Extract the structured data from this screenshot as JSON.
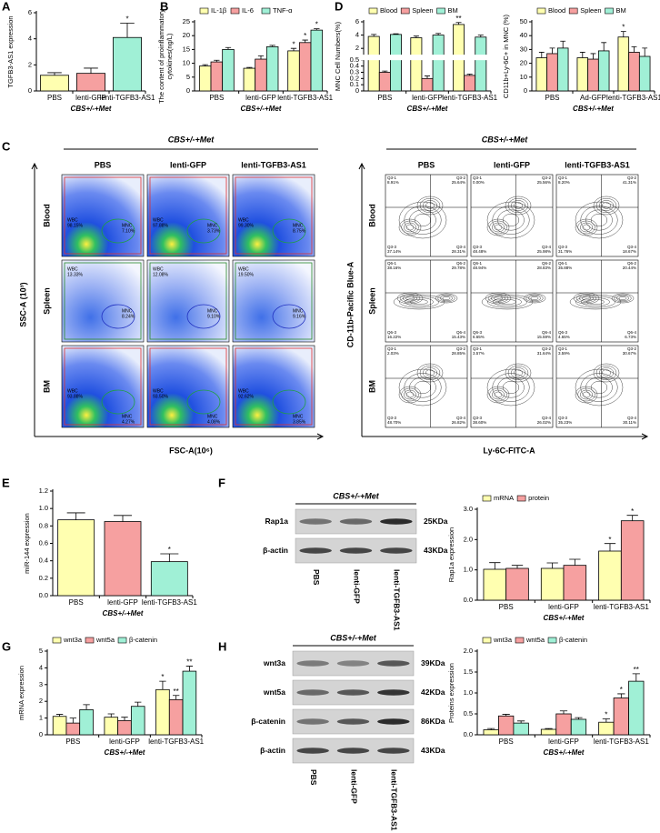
{
  "chart_data": [
    {
      "type": "bar",
      "panel_label": "A",
      "y_label": "TGFB3-AS1 expression",
      "x_label": "CBS+/-+Met",
      "categories": [
        "PBS",
        "lenti-GFP",
        "lenti-TGFB3-AS1"
      ],
      "series": [
        {
          "colors": [
            "#ffffb0",
            "#f6a0a0",
            "#a0f0d6"
          ],
          "values": [
            1.2,
            1.35,
            4.1
          ],
          "errors": [
            0.2,
            0.4,
            1.1
          ],
          "sig": [
            null,
            null,
            "*"
          ]
        }
      ],
      "ylim": [
        0,
        6
      ],
      "yticks": [
        0,
        2,
        4,
        6
      ]
    },
    {
      "type": "bar",
      "panel_label": "B",
      "y_label": [
        "The content of proinflammatory",
        "cytokines(ng/L)"
      ],
      "x_label": "CBS+/-+Met",
      "categories": [
        "PBS",
        "lenti-GFP",
        "lenti-TGFB3-AS1"
      ],
      "series": [
        {
          "name": "IL-1β",
          "color": "#ffffb0",
          "values": [
            9,
            8.2,
            14.5
          ],
          "errors": [
            0.5,
            0.3,
            0.9
          ],
          "sig": [
            null,
            null,
            "*"
          ]
        },
        {
          "name": "IL-6",
          "color": "#f6a0a0",
          "values": [
            10.5,
            11.5,
            17.5
          ],
          "errors": [
            0.6,
            1.2,
            0.9
          ],
          "sig": [
            null,
            null,
            "*"
          ]
        },
        {
          "name": "TNF-α",
          "color": "#a0f0d6",
          "values": [
            15,
            16,
            22
          ],
          "errors": [
            0.7,
            0.5,
            0.5
          ],
          "sig": [
            null,
            null,
            "*"
          ]
        }
      ],
      "ylim": [
        0,
        25
      ],
      "yticks": [
        0,
        5,
        10,
        15,
        20,
        25
      ]
    },
    {
      "type": "bar",
      "panel_label": "D",
      "y_label": "MNC Cell Numbers(%)",
      "x_label": "CBS+/-+Met",
      "categories": [
        "PBS",
        "lenti-GFP",
        "lenti-TGFB3-AS1"
      ],
      "series": [
        {
          "name": "Blood",
          "color": "#ffffb0",
          "values": [
            3.8,
            3.6,
            5.6
          ],
          "errors": [
            0.3,
            0.25,
            0.3
          ],
          "sig": [
            null,
            null,
            "**"
          ]
        },
        {
          "name": "Spleen",
          "color": "#f6a0a0",
          "values": [
            0.3,
            0.2,
            0.25
          ],
          "errors": [
            0.02,
            0.04,
            0.02
          ],
          "sig": [
            null,
            null,
            null
          ]
        },
        {
          "name": "BM",
          "color": "#a0f0d6",
          "values": [
            4.1,
            4.0,
            3.7
          ],
          "errors": [
            0.1,
            0.25,
            0.3
          ],
          "sig": [
            null,
            null,
            null
          ]
        }
      ],
      "broken_axis": true,
      "ylim_lower": [
        0,
        0.5
      ],
      "yticks_lower": [
        0,
        0.1,
        0.2,
        0.3,
        0.4,
        0.5
      ],
      "ylim_upper": [
        1,
        6
      ],
      "yticks_upper": [
        2,
        4,
        6
      ]
    },
    {
      "type": "bar",
      "y_label": "CD11b+Ly-6C+ in MNC (%)",
      "x_label": "CBS+/-+Met",
      "categories": [
        "PBS",
        "Ad-GFP",
        "lenti-TGFB3-AS1"
      ],
      "series": [
        {
          "name": "Blood",
          "color": "#ffffb0",
          "values": [
            24,
            24,
            39
          ],
          "errors": [
            4,
            4,
            4
          ],
          "sig": [
            null,
            null,
            "*"
          ]
        },
        {
          "name": "Spleen",
          "color": "#f6a0a0",
          "values": [
            27,
            23,
            28
          ],
          "errors": [
            4,
            4,
            4
          ],
          "sig": [
            null,
            null,
            null
          ]
        },
        {
          "name": "BM",
          "color": "#a0f0d6",
          "values": [
            31,
            29,
            25
          ],
          "errors": [
            5,
            6,
            6
          ],
          "sig": [
            null,
            null,
            null
          ]
        }
      ],
      "ylim": [
        0,
        50
      ],
      "yticks": [
        0,
        10,
        20,
        30,
        40,
        50
      ]
    },
    {
      "type": "bar",
      "panel_label": "E",
      "y_label": "miR-144 expression",
      "x_label": "CBS+/-+Met",
      "categories": [
        "PBS",
        "lenti-GFP",
        "lenti-TGFB3-AS1"
      ],
      "series": [
        {
          "colors": [
            "#ffffb0",
            "#f6a0a0",
            "#a0f0d6"
          ],
          "values": [
            0.87,
            0.85,
            0.39
          ],
          "errors": [
            0.08,
            0.07,
            0.09
          ],
          "sig": [
            null,
            null,
            "*"
          ]
        }
      ],
      "ylim": [
        0,
        1.2
      ],
      "yticks": [
        {
          "value": 0,
          "label": "0.0"
        },
        0.2,
        0.4,
        0.6,
        0.8,
        {
          "value": 1,
          "label": "1.0"
        },
        1.2
      ]
    },
    {
      "type": "bar",
      "y_label": "Rap1a expression",
      "x_label": "CBS+/-+Met",
      "categories": [
        "PBS",
        "lenti-GFP",
        "lenti-TGFB3-AS1"
      ],
      "series": [
        {
          "name": "mRNA",
          "color": "#ffffb0",
          "values": [
            1.02,
            1.05,
            1.62
          ],
          "errors": [
            0.22,
            0.18,
            0.25
          ],
          "sig": [
            null,
            null,
            "*"
          ]
        },
        {
          "name": "protein",
          "color": "#f6a0a0",
          "values": [
            1.05,
            1.15,
            2.62
          ],
          "errors": [
            0.1,
            0.2,
            0.18
          ],
          "sig": [
            null,
            null,
            "*"
          ]
        }
      ],
      "ylim": [
        0,
        3
      ],
      "yticks": [
        {
          "value": 0,
          "label": "0.0"
        },
        {
          "value": 1,
          "label": "1.0"
        },
        {
          "value": 2,
          "label": "2.0"
        },
        {
          "value": 3,
          "label": "3.0"
        }
      ]
    },
    {
      "type": "bar",
      "panel_label": "G",
      "y_label": "mRNA expression",
      "x_label": "CBS+/-+Met",
      "categories": [
        "PBS",
        "lenti-GFP",
        "lenti-TGFB3-AS1"
      ],
      "series": [
        {
          "name": "wnt3a",
          "color": "#ffffb0",
          "values": [
            1.1,
            1.05,
            2.7
          ],
          "errors": [
            0.12,
            0.2,
            0.5
          ],
          "sig": [
            null,
            null,
            "*"
          ]
        },
        {
          "name": "wnt5a",
          "color": "#f6a0a0",
          "values": [
            0.7,
            0.85,
            2.1
          ],
          "errors": [
            0.3,
            0.2,
            0.25
          ],
          "sig": [
            null,
            null,
            "**"
          ]
        },
        {
          "name": "β-catenin",
          "color": "#a0f0d6",
          "values": [
            1.5,
            1.7,
            3.8
          ],
          "errors": [
            0.3,
            0.25,
            0.3
          ],
          "sig": [
            null,
            null,
            "**"
          ]
        }
      ],
      "ylim": [
        0,
        5
      ],
      "yticks": [
        0,
        1,
        2,
        3,
        4,
        5
      ]
    },
    {
      "type": "bar",
      "y_label": "Proteins expression",
      "x_label": "CBS+/-+Met",
      "categories": [
        "PBS",
        "lenti-GFP",
        "lenti-TGFB3-AS1"
      ],
      "series": [
        {
          "name": "wnt3a",
          "color": "#ffffb0",
          "values": [
            0.12,
            0.13,
            0.3
          ],
          "errors": [
            0.03,
            0.02,
            0.08
          ],
          "sig": [
            null,
            null,
            "*"
          ]
        },
        {
          "name": "wnt5a",
          "color": "#f6a0a0",
          "values": [
            0.45,
            0.5,
            0.88
          ],
          "errors": [
            0.04,
            0.07,
            0.1
          ],
          "sig": [
            null,
            null,
            "*"
          ]
        },
        {
          "name": "β-catenin",
          "color": "#a0f0d6",
          "values": [
            0.28,
            0.37,
            1.28
          ],
          "errors": [
            0.05,
            0.04,
            0.18
          ],
          "sig": [
            null,
            null,
            "**"
          ]
        }
      ],
      "ylim": [
        0,
        2
      ],
      "yticks": [
        {
          "value": 0,
          "label": "0.0"
        },
        0.5,
        {
          "value": 1,
          "label": "1.0"
        },
        1.5,
        {
          "value": 2,
          "label": "2.0"
        }
      ]
    }
  ],
  "flow_scatter": {
    "panel_label": "C",
    "group_title": "CBS+/-+Met",
    "columns": [
      "PBS",
      "lenti-GFP",
      "lenti-TGFB3-AS1"
    ],
    "rows": [
      "Blood",
      "Spleen",
      "BM"
    ],
    "y_label": "SSC-A (10³)",
    "x_label": "FSC-A(10⁶)",
    "gates": [
      [
        {
          "wbc": "WBC",
          "wbc_pct": "98.15%",
          "mnc": "MNC",
          "mnc_pct": "7.10%"
        },
        {
          "wbc": "WBC",
          "wbc_pct": "97.88%",
          "mnc": "MNC",
          "mnc_pct": "3.73%"
        },
        {
          "wbc": "WBC",
          "wbc_pct": "99.30%",
          "mnc": "MNC",
          "mnc_pct": "8.75%"
        }
      ],
      [
        {
          "wbc": "WBC",
          "wbc_pct": "13.33%",
          "mnc": "MNC",
          "mnc_pct": "8.24%"
        },
        {
          "wbc": "WBC",
          "wbc_pct": "12.08%",
          "mnc": "MNC",
          "mnc_pct": "9.10%"
        },
        {
          "wbc": "WBC",
          "wbc_pct": "19.50%",
          "mnc": "MNC",
          "mnc_pct": "9.16%"
        }
      ],
      [
        {
          "wbc": "WBC",
          "wbc_pct": "93.88%",
          "mnc": "MNC",
          "mnc_pct": "4.27%"
        },
        {
          "wbc": "WBC",
          "wbc_pct": "93.50%",
          "mnc": "MNC",
          "mnc_pct": "4.08%"
        },
        {
          "wbc": "WBC",
          "wbc_pct": "92.62%",
          "mnc": "MNC",
          "mnc_pct": "3.85%"
        }
      ]
    ]
  },
  "flow_contour": {
    "group_title": "CBS+/-+Met",
    "columns": [
      "PBS",
      "lenti-GFP",
      "lenti-TGFB3-AS1"
    ],
    "rows": [
      "Blood",
      "Spleen",
      "BM"
    ],
    "y_label": "CD-11b-Pacific Blue-A",
    "x_label": "Ly-6C-FITC-A",
    "quadrants": [
      [
        {
          "names": [
            "Q3-1",
            "Q3-2",
            "Q3-3",
            "Q3-4"
          ],
          "pcts": [
            "8.91%",
            "25.64%",
            "37.14%",
            "28.31%"
          ]
        },
        {
          "names": [
            "Q3-1",
            "Q3-2",
            "Q3-3",
            "Q3-4"
          ],
          "pcts": [
            "0.00%",
            "25.56%",
            "48.48%",
            "25.98%"
          ]
        },
        {
          "names": [
            "Q3-1",
            "Q3-2",
            "Q3-3",
            "Q3-4"
          ],
          "pcts": [
            "8.20%",
            "41.31%",
            "31.76%",
            "18.67%"
          ]
        }
      ],
      [
        {
          "names": [
            "Q6-1",
            "Q6-2",
            "Q6-3",
            "Q6-4"
          ],
          "pcts": [
            "38.16%",
            "29.78%",
            "16.22%",
            "15.43%"
          ]
        },
        {
          "names": [
            "Q6-1",
            "Q6-2",
            "Q6-3",
            "Q6-4"
          ],
          "pcts": [
            "48.94%",
            "28.83%",
            "6.65%",
            "15.59%"
          ]
        },
        {
          "names": [
            "Q6-1",
            "Q6-2",
            "Q6-3",
            "Q6-4"
          ],
          "pcts": [
            "35.88%",
            "20.44%",
            "4.65%",
            "6.73%"
          ]
        }
      ],
      [
        {
          "names": [
            "Q3-1",
            "Q3-2",
            "Q3-3",
            "Q3-4"
          ],
          "pcts": [
            "2.03%",
            "28.85%",
            "48.70%",
            "26.82%"
          ]
        },
        {
          "names": [
            "Q3-1",
            "Q3-2",
            "Q3-3",
            "Q3-4"
          ],
          "pcts": [
            "3.57%",
            "31.64%",
            "38.60%",
            "26.02%"
          ]
        },
        {
          "names": [
            "Q3-1",
            "Q3-2",
            "Q3-3",
            "Q3-4"
          ],
          "pcts": [
            "3.59%",
            "30.67%",
            "35.23%",
            "30.11%"
          ]
        }
      ]
    ]
  },
  "blot_f": {
    "panel_label": "F",
    "group_title": "CBS+/-+Met",
    "proteins": [
      "Rap1a",
      "β-actin"
    ],
    "sizes": [
      "25KDa",
      "43KDa"
    ],
    "lanes": [
      "PBS",
      "lenti-GFP",
      "lenti-TGFB3-AS1"
    ]
  },
  "blot_h": {
    "panel_label": "H",
    "group_title": "CBS+/-+Met",
    "proteins": [
      "wnt3a",
      "wnt5a",
      "β-catenin",
      "β-actin"
    ],
    "sizes": [
      "39KDa",
      "42KDa",
      "86KDa",
      "43KDa"
    ],
    "lanes": [
      "PBS",
      "lenti-GFP",
      "lenti-TGFB3-AS1"
    ]
  }
}
